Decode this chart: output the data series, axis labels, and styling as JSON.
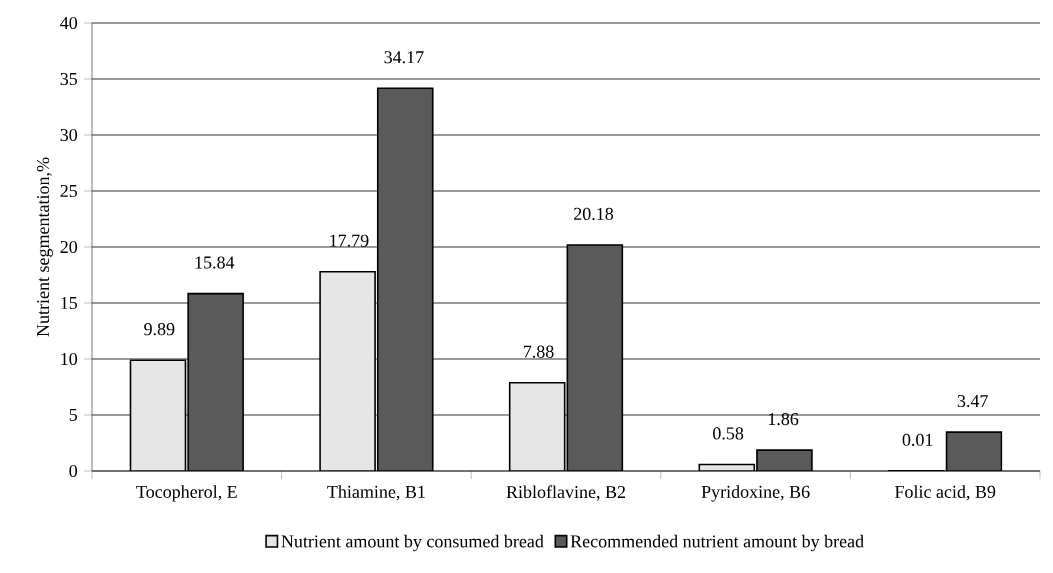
{
  "chart_data": {
    "type": "bar",
    "ylabel": "Nutrient segmentation,%",
    "categories": [
      "Tocopherol, E",
      "Thiamine, B1",
      "Ribloflavine, B2",
      "Pyridoxine, B6",
      "Folic acid, B9"
    ],
    "series": [
      {
        "name": "Nutrient amount by consumed bread",
        "color": "#e6e6e6",
        "values": [
          9.89,
          17.79,
          7.88,
          0.58,
          0.01
        ]
      },
      {
        "name": "Recommended nutrient amount by bread",
        "color": "#5a5a5a",
        "values": [
          15.84,
          34.17,
          20.18,
          1.86,
          3.47
        ]
      }
    ],
    "ylim": [
      0,
      40
    ],
    "yticks": [
      0,
      5,
      10,
      15,
      20,
      25,
      30,
      35,
      40
    ],
    "grid": "y",
    "legend": "bottom",
    "data_labels": true
  }
}
